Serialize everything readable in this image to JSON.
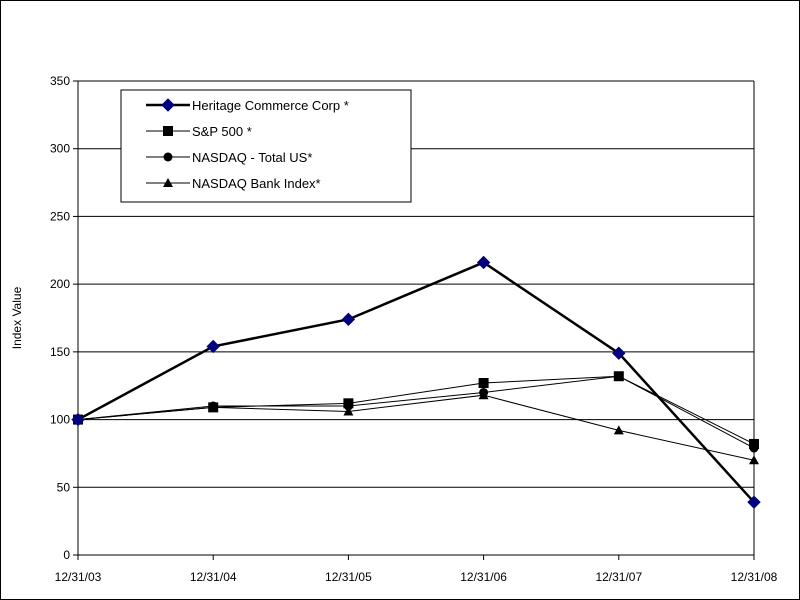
{
  "chart_data": {
    "type": "line",
    "title": "",
    "xlabel": "",
    "ylabel": "Index Value",
    "categories": [
      "12/31/03",
      "12/31/04",
      "12/31/05",
      "12/31/06",
      "12/31/07",
      "12/31/08"
    ],
    "ylim": [
      0,
      350
    ],
    "yticks": [
      0,
      50,
      100,
      150,
      200,
      250,
      300,
      350
    ],
    "grid": true,
    "legend_position": "top-left",
    "series": [
      {
        "name": "Heritage Commerce Corp *",
        "values": [
          100,
          154,
          174,
          216,
          149,
          39
        ],
        "color": "#000080",
        "marker": "diamond"
      },
      {
        "name": "S&P 500 *",
        "values": [
          100,
          109,
          112,
          127,
          132,
          82
        ],
        "color": "#000000",
        "marker": "square"
      },
      {
        "name": "NASDAQ - Total US*",
        "values": [
          100,
          110,
          110,
          120,
          132,
          79
        ],
        "color": "#000000",
        "marker": "circle"
      },
      {
        "name": "NASDAQ Bank Index*",
        "values": [
          100,
          109,
          106,
          118,
          92,
          70
        ],
        "color": "#000000",
        "marker": "triangle"
      }
    ]
  }
}
